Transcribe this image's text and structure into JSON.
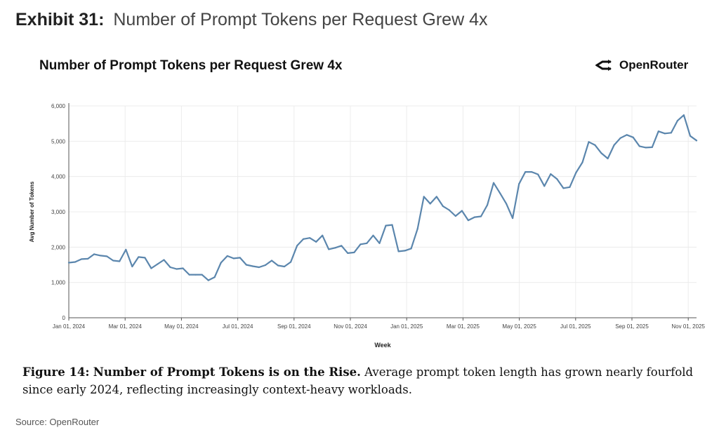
{
  "exhibit": {
    "number": "Exhibit 31:",
    "title": "Number of Prompt Tokens per Request Grew 4x"
  },
  "brand": {
    "name": "OpenRouter",
    "icon": "openrouter-logo-icon"
  },
  "caption": {
    "figure": "Figure 14:",
    "bold": "Number of Prompt Tokens is on the Rise.",
    "text": "Average prompt token length has grown nearly fourfold since early 2024, reflecting increasingly context-heavy workloads."
  },
  "source": "Source: OpenRouter",
  "colors": {
    "line": "#5b86ad",
    "grid": "#ececec",
    "axis": "#555555"
  },
  "chart_data": {
    "type": "line",
    "title": "Number of Prompt Tokens per Request Grew 4x",
    "xlabel": "Week",
    "ylabel": "Avg Number of Tokens",
    "ylim": [
      0,
      6000
    ],
    "grid": true,
    "x_tick_labels": [
      "Jan 01, 2024",
      "Mar 01, 2024",
      "May 01, 2024",
      "Jul 01, 2024",
      "Sep 01, 2024",
      "Nov 01, 2024",
      "Jan 01, 2025",
      "Mar 01, 2025",
      "May 01, 2025",
      "Jul 01, 2025",
      "Sep 01, 2025",
      "Nov 01, 2025"
    ],
    "y_tick_labels": [
      "0",
      "1,000",
      "2,000",
      "3,000",
      "4,000",
      "5,000",
      "6,000"
    ],
    "y_ticks": [
      0,
      1000,
      2000,
      3000,
      4000,
      5000,
      6000
    ],
    "series": [
      {
        "values": [
          1560,
          1580,
          1660,
          1670,
          1800,
          1760,
          1740,
          1620,
          1600,
          1930,
          1450,
          1720,
          1700,
          1400,
          1520,
          1640,
          1430,
          1380,
          1400,
          1220,
          1220,
          1220,
          1060,
          1150,
          1560,
          1750,
          1680,
          1700,
          1500,
          1460,
          1430,
          1490,
          1620,
          1480,
          1450,
          1580,
          2040,
          2230,
          2260,
          2150,
          2330,
          1940,
          1980,
          2040,
          1830,
          1850,
          2080,
          2110,
          2330,
          2110,
          2610,
          2630,
          1880,
          1900,
          1960,
          2520,
          3430,
          3230,
          3430,
          3160,
          3050,
          2880,
          3030,
          2760,
          2850,
          2870,
          3190,
          3820,
          3530,
          3230,
          2820,
          3790,
          4130,
          4130,
          4060,
          3730,
          4070,
          3930,
          3670,
          3700,
          4110,
          4400,
          4980,
          4890,
          4660,
          4510,
          4890,
          5090,
          5180,
          5110,
          4860,
          4820,
          4830,
          5280,
          5220,
          5240,
          5580,
          5740,
          5150,
          5020
        ]
      }
    ]
  }
}
